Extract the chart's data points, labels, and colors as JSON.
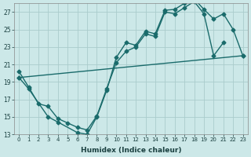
{
  "xlabel": "Humidex (Indice chaleur)",
  "bg_color": "#cce8e8",
  "grid_color": "#aacccc",
  "line_color": "#1a6b6b",
  "xlim_min": -0.5,
  "xlim_max": 23.5,
  "ylim_min": 13,
  "ylim_max": 28,
  "xticks": [
    0,
    1,
    2,
    3,
    4,
    5,
    6,
    7,
    8,
    9,
    10,
    11,
    12,
    13,
    14,
    15,
    16,
    17,
    18,
    19,
    20,
    21,
    22,
    23
  ],
  "yticks": [
    13,
    15,
    17,
    19,
    21,
    23,
    25,
    27
  ],
  "line_width": 1.0,
  "marker_size": 2.5,
  "curve1_x": [
    0,
    1,
    2,
    3,
    4,
    5,
    6,
    7,
    8,
    9,
    10,
    11,
    12,
    13,
    14,
    15,
    16,
    17,
    18,
    19,
    20,
    21
  ],
  "curve1_y": [
    20.2,
    18.4,
    16.5,
    16.2,
    14.8,
    14.3,
    13.8,
    13.5,
    15.1,
    18.2,
    21.2,
    22.5,
    23.0,
    24.5,
    24.2,
    27.0,
    26.8,
    27.5,
    28.2,
    26.8,
    22.0,
    23.5
  ],
  "curve2_x": [
    0,
    1,
    3,
    4,
    6,
    7,
    8,
    9,
    10,
    11,
    12,
    13,
    14,
    15,
    16,
    17,
    18,
    19,
    20,
    21,
    22,
    23
  ],
  "curve2_y": [
    19.5,
    18.2,
    15.0,
    14.4,
    13.2,
    13.0,
    15.0,
    18.0,
    21.8,
    23.5,
    23.2,
    24.8,
    24.5,
    27.2,
    27.3,
    28.0,
    28.5,
    27.3,
    26.2,
    26.8,
    25.0,
    22.0
  ],
  "line3_x": [
    0,
    23
  ],
  "line3_y": [
    19.5,
    22.0
  ]
}
